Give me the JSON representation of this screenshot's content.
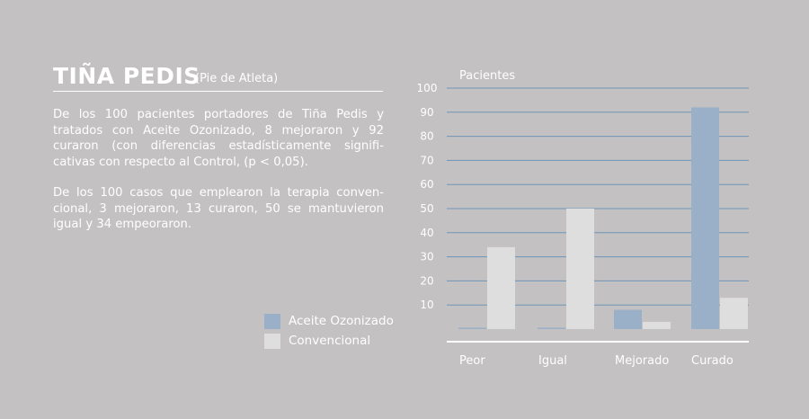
{
  "heading": {
    "title": "TIÑA PEDIS",
    "subtitle": "(Pie de Atleta)"
  },
  "paragraphs": [
    "De los 100 pacientes portadores de Tiña Pedis y tratados con Aceite Ozonizado, 8 mejoraron y 92 curaron (con diferencias estadísticamente signifi- cativas con respecto al Control, (p < 0,05).",
    "De los 100 casos que emplearon la terapia conven- cional, 3 mejoraron,  13 curaron, 50 se mantuvieron igual y 34 empeoraron."
  ],
  "colors": {
    "background": "#c3c1c1",
    "series_ozonizado": "#9ab0c8",
    "series_convencional": "#dedede",
    "gridline": "#6f95b8"
  },
  "chart_data": {
    "type": "bar",
    "ylabel": "Pacientes",
    "xlabel": "",
    "ylim": [
      0,
      100
    ],
    "yticks": [
      10,
      20,
      30,
      40,
      50,
      60,
      70,
      80,
      90,
      100
    ],
    "grid": true,
    "categories": [
      "Peor",
      "Igual",
      "Mejorado",
      "Curado"
    ],
    "series": [
      {
        "name": "Aceite Ozonizado",
        "values": [
          0,
          0,
          8,
          92
        ],
        "color": "#9ab0c8"
      },
      {
        "name": "Convencional",
        "values": [
          34,
          50,
          3,
          13
        ],
        "color": "#dedede"
      }
    ],
    "legend_position": "left of chart, bottom"
  }
}
